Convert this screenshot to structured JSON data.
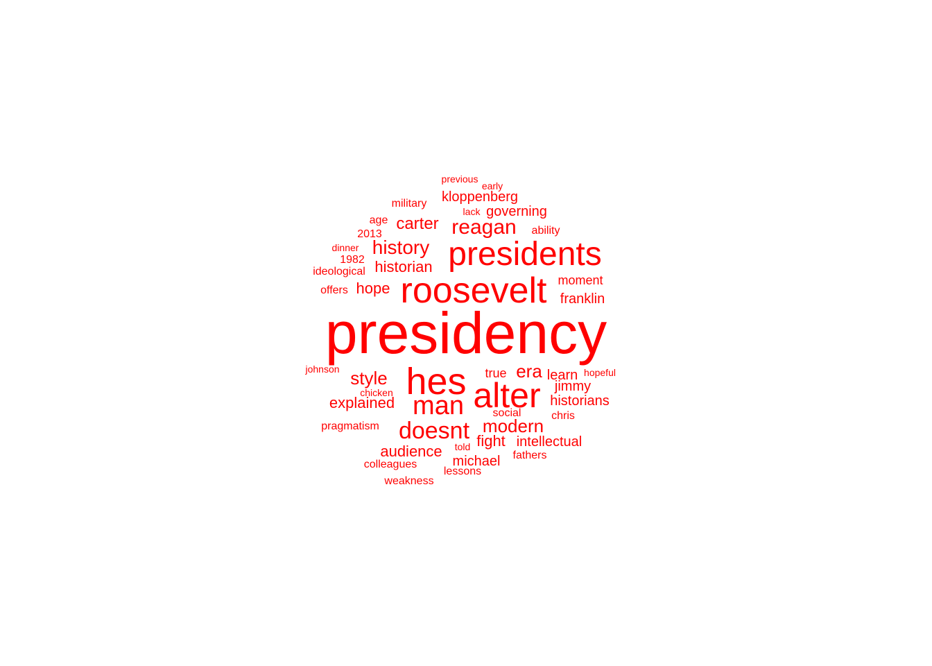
{
  "color": "#ff0000",
  "words": [
    "presidency",
    "roosevelt",
    "presidents",
    "alter",
    "hes",
    "man",
    "doesnt",
    "reagan",
    "history",
    "carter",
    "style",
    "modern",
    "era",
    "historian",
    "explained",
    "hope",
    "audience",
    "historians",
    "michael",
    "intellectual",
    "franklin",
    "fight",
    "kloppenberg",
    "governing",
    "jimmy",
    "learn",
    "moment",
    "true",
    "military",
    "age",
    "2013",
    "ability",
    "1982",
    "ideological",
    "offers",
    "social",
    "chris",
    "pragmatism",
    "colleagues",
    "weakness",
    "lessons",
    "fathers",
    "told",
    "johnson",
    "chicken",
    "hopeful",
    "dinner",
    "previous",
    "early",
    "lack"
  ]
}
